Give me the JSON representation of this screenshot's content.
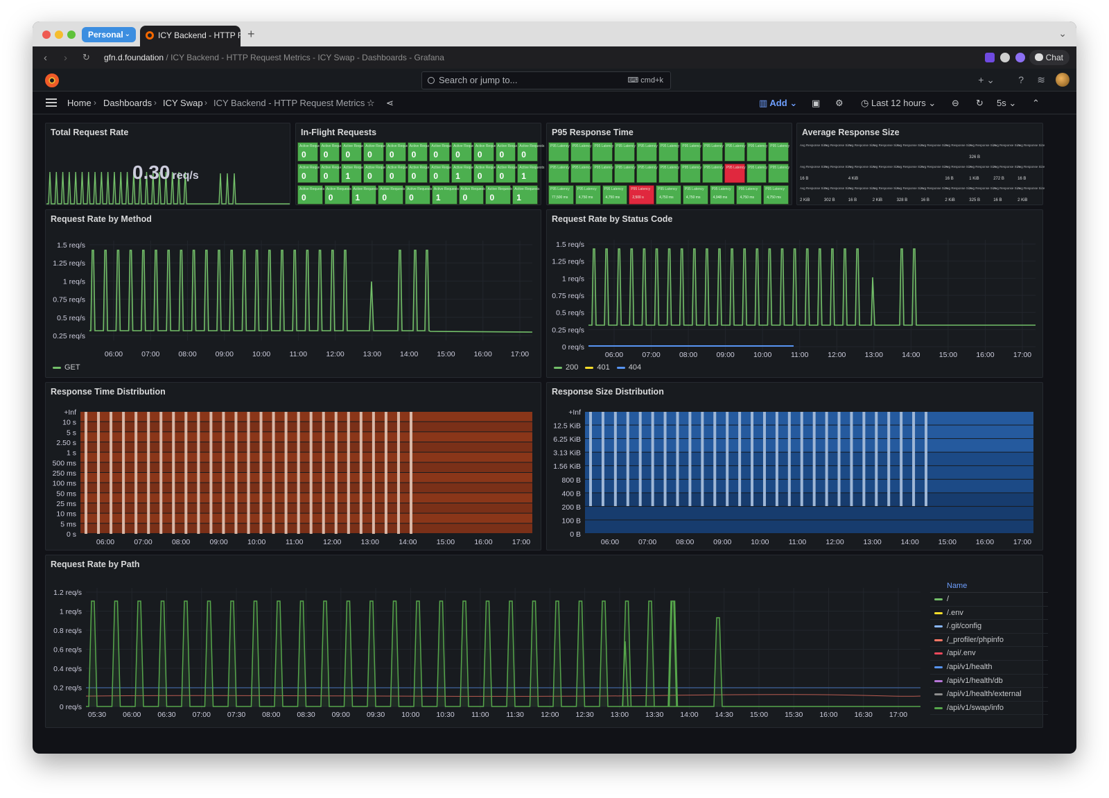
{
  "browser": {
    "profile": "Personal",
    "tab_title": "ICY Backend - HTTP R",
    "url_domain": "gfn.d.foundation",
    "url_rest": " / ICY Backend - HTTP Request Metrics - ICY Swap - Dashboards - Grafana",
    "chat_label": "Chat"
  },
  "topbar": {
    "search_placeholder": "Search or jump to...",
    "search_shortcut": "cmd+k"
  },
  "navbar": {
    "breadcrumbs": [
      "Home",
      "Dashboards",
      "ICY Swap",
      "ICY Backend - HTTP Request Metrics"
    ],
    "add_label": "Add",
    "time_range": "Last 12 hours",
    "refresh_interval": "5s"
  },
  "colors": {
    "green": "#73bf69",
    "yellow": "#fade2a",
    "blue": "#5794f2",
    "red": "#e0283e",
    "heat_orange": "#8a3418",
    "heat_blue": "#1f4e8c"
  },
  "panels": {
    "total_request_rate": {
      "title": "Total Request Rate",
      "value": "0.30",
      "unit": "req/s"
    },
    "in_flight": {
      "title": "In-Flight Requests",
      "cell_label": "Active Requests",
      "rows": [
        [
          "0",
          "0",
          "0",
          "0",
          "0",
          "0",
          "0",
          "0",
          "0",
          "0",
          "0"
        ],
        [
          "0",
          "0",
          "1",
          "0",
          "0",
          "0",
          "0",
          "1",
          "0",
          "0",
          "1"
        ],
        [
          "0",
          "0",
          "1",
          "0",
          "0",
          "1",
          "0",
          "0",
          "1"
        ]
      ]
    },
    "p95": {
      "title": "P95 Response Time",
      "cell_label": "P95 Latency",
      "third_row": [
        "77,500 ms",
        "4,750 ms",
        "4,750 ms",
        "2,500 s",
        "4,750 ms",
        "4,750 ms",
        "4,948 ms",
        "4,750 ms",
        "4,750 ms"
      ],
      "red_cells": [
        [
          1,
          8
        ],
        [
          2,
          3
        ]
      ]
    },
    "avg_size": {
      "title": "Average Response Size",
      "cell_label": "Avg Response Size",
      "rows": [
        [
          "",
          "",
          "",
          "",
          "",
          "",
          "",
          "326 B",
          "",
          ""
        ],
        [
          "16 B",
          "",
          "4 KiB",
          "",
          "",
          "",
          "16 B",
          "1 KiB",
          "272 B",
          "16 B"
        ],
        [
          "2 KiB",
          "302 B",
          "16 B",
          "2 KiB",
          "328 B",
          "16 B",
          "2 KiB",
          "325 B",
          "16 B",
          "2 KiB"
        ]
      ]
    },
    "by_method": {
      "title": "Request Rate by Method",
      "y_ticks": [
        "1.5 req/s",
        "1.25 req/s",
        "1 req/s",
        "0.75 req/s",
        "0.5 req/s",
        "0.25 req/s"
      ],
      "x_ticks": [
        "06:00",
        "07:00",
        "08:00",
        "09:00",
        "10:00",
        "11:00",
        "12:00",
        "13:00",
        "14:00",
        "15:00",
        "16:00",
        "17:00"
      ],
      "legend": [
        {
          "name": "GET",
          "color": "#73bf69"
        }
      ]
    },
    "by_status": {
      "title": "Request Rate by Status Code",
      "y_ticks": [
        "1.5 req/s",
        "1.25 req/s",
        "1 req/s",
        "0.75 req/s",
        "0.5 req/s",
        "0.25 req/s",
        "0 req/s"
      ],
      "x_ticks": [
        "06:00",
        "07:00",
        "08:00",
        "09:00",
        "10:00",
        "11:00",
        "12:00",
        "13:00",
        "14:00",
        "15:00",
        "16:00",
        "17:00"
      ],
      "legend": [
        {
          "name": "200",
          "color": "#73bf69"
        },
        {
          "name": "401",
          "color": "#fade2a"
        },
        {
          "name": "404",
          "color": "#5794f2"
        }
      ]
    },
    "time_dist": {
      "title": "Response Time Distribution",
      "y_ticks": [
        "+Inf",
        "10 s",
        "5 s",
        "2.50 s",
        "1 s",
        "500 ms",
        "250 ms",
        "100 ms",
        "50 ms",
        "25 ms",
        "10 ms",
        "5 ms",
        "0 s"
      ],
      "x_ticks": [
        "06:00",
        "07:00",
        "08:00",
        "09:00",
        "10:00",
        "11:00",
        "12:00",
        "13:00",
        "14:00",
        "15:00",
        "16:00",
        "17:00"
      ]
    },
    "size_dist": {
      "title": "Response Size Distribution",
      "y_ticks": [
        "+Inf",
        "12.5 KiB",
        "6.25 KiB",
        "3.13 KiB",
        "1.56 KiB",
        "800 B",
        "400 B",
        "200 B",
        "100 B",
        "0 B"
      ],
      "x_ticks": [
        "06:00",
        "07:00",
        "08:00",
        "09:00",
        "10:00",
        "11:00",
        "12:00",
        "13:00",
        "14:00",
        "15:00",
        "16:00",
        "17:00"
      ]
    },
    "by_path": {
      "title": "Request Rate by Path",
      "y_ticks": [
        "1.2 req/s",
        "1 req/s",
        "0.8 req/s",
        "0.6 req/s",
        "0.4 req/s",
        "0.2 req/s",
        "0 req/s"
      ],
      "x_ticks": [
        "05:30",
        "06:00",
        "06:30",
        "07:00",
        "07:30",
        "08:00",
        "08:30",
        "09:00",
        "09:30",
        "10:00",
        "10:30",
        "11:00",
        "11:30",
        "12:00",
        "12:30",
        "13:00",
        "13:30",
        "14:00",
        "14:30",
        "15:00",
        "15:30",
        "16:00",
        "16:30",
        "17:00"
      ],
      "legend_header": "Name",
      "legend": [
        {
          "name": "/",
          "color": "#73bf69"
        },
        {
          "name": "/.env",
          "color": "#fade2a"
        },
        {
          "name": "/.git/config",
          "color": "#8ab8ff"
        },
        {
          "name": "/_profiler/phpinfo",
          "color": "#ff7866"
        },
        {
          "name": "/api/.env",
          "color": "#f2495c"
        },
        {
          "name": "/api/v1/health",
          "color": "#5794f2"
        },
        {
          "name": "/api/v1/health/db",
          "color": "#b877d9"
        },
        {
          "name": "/api/v1/health/external",
          "color": "#8e8e8e"
        },
        {
          "name": "/api/v1/swap/info",
          "color": "#56a64b"
        }
      ]
    }
  },
  "chart_data": [
    {
      "type": "line",
      "title": "Request Rate by Method",
      "series": [
        {
          "name": "GET",
          "spike_times": [
            "05:45",
            "06:05",
            "06:25",
            "06:45",
            "07:05",
            "07:25",
            "07:45",
            "08:05",
            "08:25",
            "08:45",
            "09:05",
            "09:25",
            "09:45",
            "10:05",
            "10:25",
            "10:45",
            "11:05",
            "11:25",
            "11:45",
            "12:05",
            "12:25",
            "12:45",
            "13:05",
            "13:40",
            "14:00",
            "14:20"
          ],
          "spike_peak": 1.45,
          "baseline": 0.3,
          "tail_after": "14:25",
          "tail_value": 0.3
        }
      ],
      "ylim": [
        0.2,
        1.6
      ]
    },
    {
      "type": "line",
      "title": "Request Rate by Status Code",
      "series": [
        {
          "name": "200",
          "spike_peak": 1.45,
          "baseline": 0.3,
          "tail_value": 0.3
        },
        {
          "name": "404",
          "value": 0.0,
          "until": "11:00"
        }
      ],
      "ylim": [
        0,
        1.6
      ]
    },
    {
      "type": "heatmap",
      "title": "Response Time Distribution",
      "buckets": [
        "+Inf",
        "10 s",
        "5 s",
        "2.50 s",
        "1 s",
        "500 ms",
        "250 ms",
        "100 ms",
        "50 ms",
        "25 ms",
        "10 ms",
        "5 ms",
        "0 s"
      ]
    },
    {
      "type": "heatmap",
      "title": "Response Size Distribution",
      "buckets": [
        "+Inf",
        "12.5 KiB",
        "6.25 KiB",
        "3.13 KiB",
        "1.56 KiB",
        "800 B",
        "400 B",
        "200 B",
        "100 B",
        "0 B"
      ]
    },
    {
      "type": "line",
      "title": "Request Rate by Path",
      "series": [
        {
          "name": "/",
          "spike_peak": 1.15,
          "baseline": 0.0,
          "last_spike": "14:25"
        },
        {
          "name": "/api/v1/health",
          "value": 0.2
        },
        {
          "name": "/_profiler/phpinfo",
          "value": 0.1
        }
      ],
      "ylim": [
        0,
        1.25
      ]
    }
  ]
}
